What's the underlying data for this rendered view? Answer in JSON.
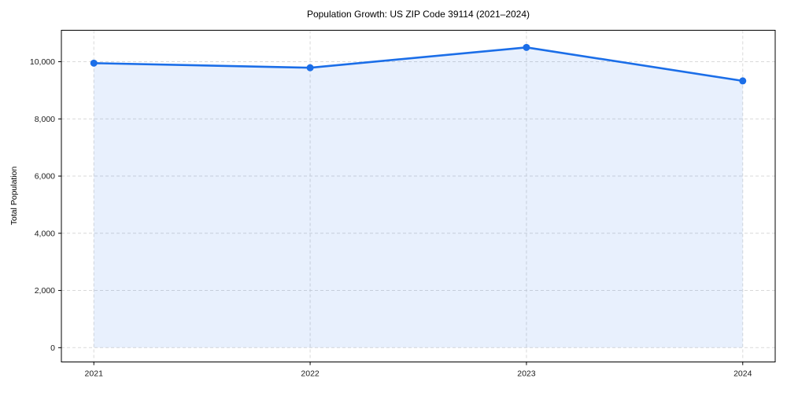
{
  "chart_data": {
    "type": "line",
    "title": "Population Growth: US ZIP Code 39114 (2021–2024)",
    "xlabel": "",
    "ylabel": "Total Population",
    "x": [
      2021,
      2022,
      2023,
      2024
    ],
    "series": [
      {
        "name": "Total Population",
        "values": [
          9950,
          9790,
          10500,
          9330
        ]
      }
    ],
    "x_tick_labels": [
      "2021",
      "2022",
      "2023",
      "2024"
    ],
    "y_ticks": [
      0,
      2000,
      4000,
      6000,
      8000,
      10000
    ],
    "y_tick_labels": [
      "0",
      "2,000",
      "4,000",
      "6,000",
      "8,000",
      "10,000"
    ],
    "xlim": [
      2020.85,
      2024.15
    ],
    "ylim": [
      -500,
      11100
    ],
    "grid": true,
    "legend": false,
    "area_fill_to_zero": true,
    "marker": "circle",
    "colors": {
      "line": "#1b6ee8",
      "fill": "#1b6ee8",
      "fill_opacity": 0.1,
      "grid": "#d9d9d9",
      "spine": "#000000",
      "text": "#1a1a1a",
      "background": "#ffffff"
    }
  }
}
